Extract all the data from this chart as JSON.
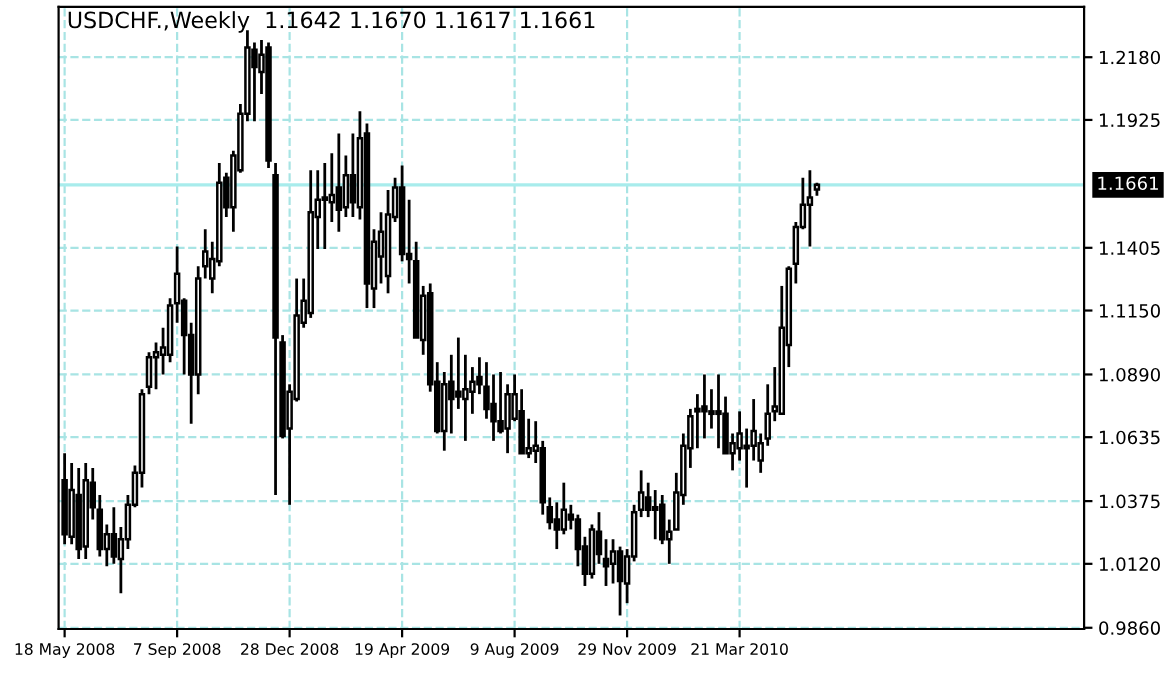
{
  "chart_data": {
    "type": "candlestick",
    "title": "USDCHF.,Weekly  1.1642 1.1670 1.1617 1.1661",
    "color": "#000000",
    "grid": true,
    "x": [
      "2008-05-18",
      "2008-05-25",
      "2008-06-01",
      "2008-06-08",
      "2008-06-15",
      "2008-06-22",
      "2008-06-29",
      "2008-07-06",
      "2008-07-13",
      "2008-07-20",
      "2008-07-27",
      "2008-08-03",
      "2008-08-10",
      "2008-08-17",
      "2008-08-24",
      "2008-08-31",
      "2008-09-07",
      "2008-09-14",
      "2008-09-21",
      "2008-09-28",
      "2008-10-05",
      "2008-10-12",
      "2008-10-19",
      "2008-10-26",
      "2008-11-02",
      "2008-11-09",
      "2008-11-16",
      "2008-11-23",
      "2008-11-30",
      "2008-12-07",
      "2008-12-14",
      "2008-12-21",
      "2008-12-28",
      "2009-01-04",
      "2009-01-11",
      "2009-01-18",
      "2009-01-25",
      "2009-02-01",
      "2009-02-08",
      "2009-02-15",
      "2009-02-22",
      "2009-03-01",
      "2009-03-08",
      "2009-03-15",
      "2009-03-22",
      "2009-03-29",
      "2009-04-05",
      "2009-04-12",
      "2009-04-19",
      "2009-04-26",
      "2009-05-03",
      "2009-05-10",
      "2009-05-17",
      "2009-05-24",
      "2009-05-31",
      "2009-06-07",
      "2009-06-14",
      "2009-06-21",
      "2009-06-28",
      "2009-07-05",
      "2009-07-12",
      "2009-07-19",
      "2009-07-26",
      "2009-08-02",
      "2009-08-09",
      "2009-08-16",
      "2009-08-23",
      "2009-08-30",
      "2009-09-06",
      "2009-09-13",
      "2009-09-20",
      "2009-09-27",
      "2009-10-04",
      "2009-10-11",
      "2009-10-18",
      "2009-10-25",
      "2009-11-01",
      "2009-11-08",
      "2009-11-15",
      "2009-11-22",
      "2009-11-29",
      "2009-12-06",
      "2009-12-13",
      "2009-12-20",
      "2009-12-27",
      "2010-01-03",
      "2010-01-10",
      "2010-01-17",
      "2010-01-24",
      "2010-01-31",
      "2010-02-07",
      "2010-02-14",
      "2010-02-21",
      "2010-02-28",
      "2010-03-07",
      "2010-03-14",
      "2010-03-21",
      "2010-03-28",
      "2010-04-04",
      "2010-04-11",
      "2010-04-18",
      "2010-04-25",
      "2010-05-02",
      "2010-05-09",
      "2010-05-16",
      "2010-05-23",
      "2010-05-30",
      "2010-06-06"
    ],
    "ohlc": [
      [
        1.046,
        1.057,
        1.02,
        1.024
      ],
      [
        1.023,
        1.053,
        1.02,
        1.042
      ],
      [
        1.04,
        1.051,
        1.014,
        1.018
      ],
      [
        1.019,
        1.053,
        1.014,
        1.046
      ],
      [
        1.045,
        1.051,
        1.03,
        1.035
      ],
      [
        1.034,
        1.04,
        1.015,
        1.018
      ],
      [
        1.018,
        1.028,
        1.011,
        1.024
      ],
      [
        1.024,
        1.035,
        1.012,
        1.015
      ],
      [
        1.014,
        1.027,
        1.0,
        1.022
      ],
      [
        1.022,
        1.04,
        1.018,
        1.036
      ],
      [
        1.036,
        1.052,
        1.035,
        1.049
      ],
      [
        1.049,
        1.083,
        1.043,
        1.081
      ],
      [
        1.084,
        1.098,
        1.081,
        1.096
      ],
      [
        1.096,
        1.102,
        1.083,
        1.098
      ],
      [
        1.097,
        1.108,
        1.089,
        1.1
      ],
      [
        1.097,
        1.12,
        1.094,
        1.117
      ],
      [
        1.118,
        1.141,
        1.11,
        1.13
      ],
      [
        1.119,
        1.12,
        1.089,
        1.105
      ],
      [
        1.105,
        1.11,
        1.069,
        1.089
      ],
      [
        1.089,
        1.133,
        1.081,
        1.128
      ],
      [
        1.133,
        1.148,
        1.128,
        1.139
      ],
      [
        1.128,
        1.143,
        1.122,
        1.136
      ],
      [
        1.135,
        1.175,
        1.133,
        1.167
      ],
      [
        1.169,
        1.171,
        1.153,
        1.157
      ],
      [
        1.157,
        1.18,
        1.147,
        1.178
      ],
      [
        1.172,
        1.199,
        1.171,
        1.195
      ],
      [
        1.195,
        1.229,
        1.192,
        1.222
      ],
      [
        1.221,
        1.224,
        1.192,
        1.214
      ],
      [
        1.212,
        1.225,
        1.203,
        1.219
      ],
      [
        1.222,
        1.224,
        1.173,
        1.176
      ],
      [
        1.17,
        1.175,
        1.04,
        1.104
      ],
      [
        1.102,
        1.105,
        1.063,
        1.064
      ],
      [
        1.067,
        1.085,
        1.036,
        1.082
      ],
      [
        1.079,
        1.128,
        1.078,
        1.113
      ],
      [
        1.11,
        1.128,
        1.108,
        1.119
      ],
      [
        1.114,
        1.172,
        1.112,
        1.155
      ],
      [
        1.153,
        1.172,
        1.14,
        1.16
      ],
      [
        1.16,
        1.175,
        1.14,
        1.161
      ],
      [
        1.159,
        1.179,
        1.151,
        1.162
      ],
      [
        1.165,
        1.187,
        1.147,
        1.156
      ],
      [
        1.157,
        1.178,
        1.153,
        1.17
      ],
      [
        1.17,
        1.187,
        1.153,
        1.159
      ],
      [
        1.157,
        1.196,
        1.152,
        1.185
      ],
      [
        1.187,
        1.191,
        1.116,
        1.126
      ],
      [
        1.124,
        1.148,
        1.116,
        1.143
      ],
      [
        1.137,
        1.155,
        1.126,
        1.147
      ],
      [
        1.129,
        1.164,
        1.122,
        1.154
      ],
      [
        1.153,
        1.169,
        1.151,
        1.165
      ],
      [
        1.165,
        1.174,
        1.135,
        1.138
      ],
      [
        1.138,
        1.16,
        1.126,
        1.136
      ],
      [
        1.135,
        1.143,
        1.104,
        1.104
      ],
      [
        1.103,
        1.125,
        1.097,
        1.121
      ],
      [
        1.122,
        1.126,
        1.082,
        1.085
      ],
      [
        1.086,
        1.094,
        1.065,
        1.066
      ],
      [
        1.066,
        1.09,
        1.058,
        1.085
      ],
      [
        1.086,
        1.097,
        1.065,
        1.079
      ],
      [
        1.082,
        1.104,
        1.075,
        1.08
      ],
      [
        1.079,
        1.097,
        1.062,
        1.083
      ],
      [
        1.082,
        1.092,
        1.073,
        1.086
      ],
      [
        1.088,
        1.096,
        1.081,
        1.085
      ],
      [
        1.084,
        1.094,
        1.071,
        1.075
      ],
      [
        1.077,
        1.089,
        1.062,
        1.07
      ],
      [
        1.07,
        1.09,
        1.065,
        1.066
      ],
      [
        1.067,
        1.085,
        1.057,
        1.081
      ],
      [
        1.071,
        1.089,
        1.07,
        1.081
      ],
      [
        1.074,
        1.083,
        1.057,
        1.057
      ],
      [
        1.057,
        1.071,
        1.055,
        1.059
      ],
      [
        1.058,
        1.07,
        1.053,
        1.06
      ],
      [
        1.059,
        1.062,
        1.032,
        1.037
      ],
      [
        1.035,
        1.039,
        1.026,
        1.029
      ],
      [
        1.03,
        1.037,
        1.018,
        1.026
      ],
      [
        1.026,
        1.045,
        1.024,
        1.034
      ],
      [
        1.032,
        1.036,
        1.026,
        1.03
      ],
      [
        1.03,
        1.032,
        1.011,
        1.018
      ],
      [
        1.019,
        1.023,
        1.003,
        1.008
      ],
      [
        1.008,
        1.028,
        1.006,
        1.026
      ],
      [
        1.025,
        1.033,
        1.012,
        1.016
      ],
      [
        1.014,
        1.022,
        1.003,
        1.011
      ],
      [
        1.012,
        1.022,
        1.004,
        1.017
      ],
      [
        1.017,
        1.019,
        0.991,
        1.005
      ],
      [
        1.004,
        1.018,
        0.996,
        1.015
      ],
      [
        1.015,
        1.036,
        1.013,
        1.033
      ],
      [
        1.034,
        1.05,
        1.031,
        1.041
      ],
      [
        1.039,
        1.045,
        1.031,
        1.034
      ],
      [
        1.035,
        1.042,
        1.022,
        1.034
      ],
      [
        1.036,
        1.04,
        1.02,
        1.022
      ],
      [
        1.022,
        1.03,
        1.012,
        1.025
      ],
      [
        1.026,
        1.049,
        1.026,
        1.041
      ],
      [
        1.04,
        1.065,
        1.036,
        1.06
      ],
      [
        1.059,
        1.075,
        1.051,
        1.072
      ],
      [
        1.075,
        1.081,
        1.059,
        1.074
      ],
      [
        1.076,
        1.089,
        1.063,
        1.074
      ],
      [
        1.074,
        1.083,
        1.067,
        1.073
      ],
      [
        1.074,
        1.089,
        1.059,
        1.073
      ],
      [
        1.073,
        1.08,
        1.057,
        1.057
      ],
      [
        1.057,
        1.065,
        1.05,
        1.061
      ],
      [
        1.059,
        1.074,
        1.054,
        1.065
      ],
      [
        1.06,
        1.067,
        1.043,
        1.059
      ],
      [
        1.06,
        1.079,
        1.054,
        1.066
      ],
      [
        1.054,
        1.065,
        1.049,
        1.061
      ],
      [
        1.063,
        1.085,
        1.06,
        1.073
      ],
      [
        1.074,
        1.092,
        1.07,
        1.076
      ],
      [
        1.073,
        1.125,
        1.073,
        1.108
      ],
      [
        1.101,
        1.133,
        1.092,
        1.132
      ],
      [
        1.134,
        1.151,
        1.126,
        1.149
      ],
      [
        1.149,
        1.169,
        1.148,
        1.158
      ],
      [
        1.158,
        1.172,
        1.141,
        1.161
      ],
      [
        1.1642,
        1.167,
        1.1617,
        1.1661
      ]
    ],
    "xlim": [
      "2008-05-12",
      "2011-02-27"
    ],
    "xticks": [
      {
        "value": "2008-05-18",
        "label": "18 May 2008"
      },
      {
        "value": "2008-09-07",
        "label": "7 Sep 2008"
      },
      {
        "value": "2008-12-28",
        "label": "28 Dec 2008"
      },
      {
        "value": "2009-04-19",
        "label": "19 Apr 2009"
      },
      {
        "value": "2009-08-09",
        "label": "9 Aug 2009"
      },
      {
        "value": "2009-11-29",
        "label": "29 Nov 2009"
      },
      {
        "value": "2010-03-21",
        "label": "21 Mar 2010"
      }
    ],
    "ylim": [
      0.9855,
      1.2385
    ],
    "yticks": [
      {
        "value": 0.986,
        "label": "0.9860"
      },
      {
        "value": 1.012,
        "label": "1.0120"
      },
      {
        "value": 1.0375,
        "label": "1.0375"
      },
      {
        "value": 1.0635,
        "label": "1.0635"
      },
      {
        "value": 1.089,
        "label": "1.0890"
      },
      {
        "value": 1.115,
        "label": "1.1150"
      },
      {
        "value": 1.1405,
        "label": "1.1405"
      },
      {
        "value": 1.1925,
        "label": "1.1925"
      },
      {
        "value": 1.218,
        "label": "1.2180"
      }
    ],
    "ref_lines": [
      {
        "axis": "y",
        "value": 1.1661,
        "label": "1.1661",
        "color": "#a8ecec"
      }
    ]
  }
}
